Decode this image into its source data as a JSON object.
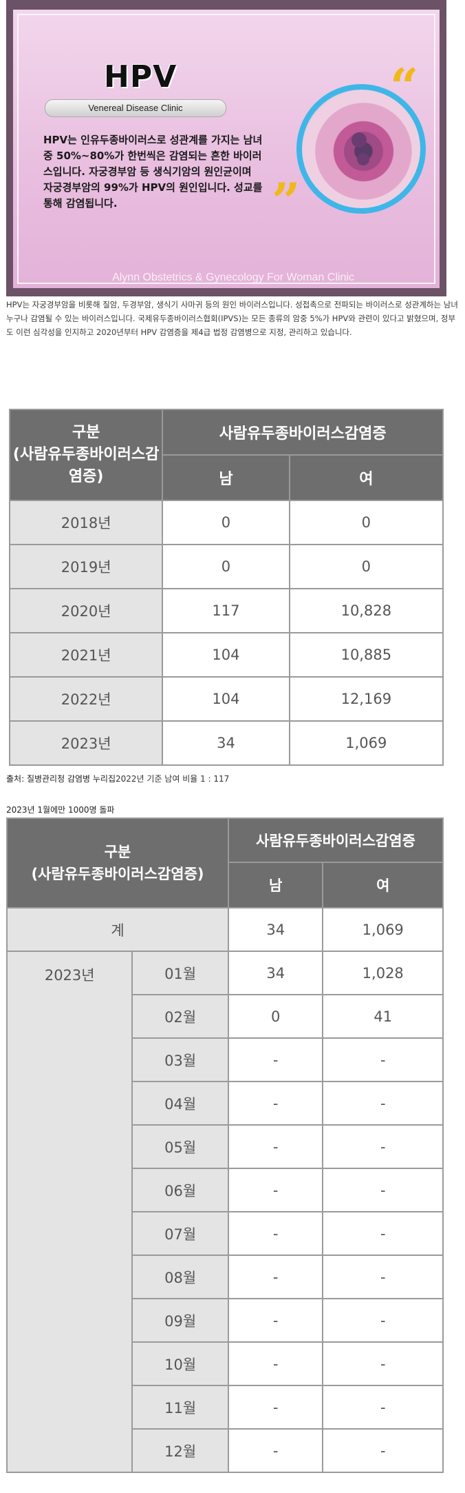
{
  "banner": {
    "title": "HPV",
    "subtitle": "Venereal Disease Clinic",
    "text": "HPV는 인유두종바이러스로 성관계를 가지는 남녀중 50%~80%가 한번씩은 감염되는 흔한 바이러스입니다. 자궁경부암 등 생식기암의 원인균이며 자궁경부암의 99%가 HPV의 원인입니다. 성교를 통해 감염됩니다.",
    "quote_open": "“",
    "quote_close": "”",
    "footer": "Alynn Obstetrics & Gynecology For Woman Clinic",
    "accent_color": "#3fb6e8",
    "quote_color": "#f0b81a"
  },
  "intro": "HPV는 자궁경부암을 비롯해 질암, 두경부암, 생식기 사마귀 등의 원인 바이러스입니다. 성접촉으로 전파되는 바이러스로 성관계하는 남녀 누구나 감염될 수 있는 바이러스입니다. 국제유두종바이러스협회(IPVS)는 모든 종류의 암중 5%가 HPV와 관련이 있다고 밝혔으며, 정부도 이런 심각성을 인지하고 2020년부터 HPV 감염증을 제4급 법정 감염병으로 지정, 관리하고 있습니다.",
  "table1": {
    "header_label": "구분\n(사람유두종바이러스감염증)",
    "header_group": "사람유두종바이러스감염증",
    "header_male": "남",
    "header_female": "여",
    "rows": [
      {
        "year": "2018년",
        "male": "0",
        "female": "0"
      },
      {
        "year": "2019년",
        "male": "0",
        "female": "0"
      },
      {
        "year": "2020년",
        "male": "117",
        "female": "10,828"
      },
      {
        "year": "2021년",
        "male": "104",
        "female": "10,885"
      },
      {
        "year": "2022년",
        "male": "104",
        "female": "12,169"
      },
      {
        "year": "2023년",
        "male": "34",
        "female": "1,069"
      }
    ]
  },
  "source": {
    "label": "출처: 질병관리청 감염병 누리집",
    "note": "2022년 기준 남여 비율 1 : 117"
  },
  "table2_title": "2023년 1월에만 1000명 돌파",
  "table2": {
    "header_label": "구분\n(사람유두종바이러스감염증)",
    "header_group": "사람유두종바이러스감염증",
    "header_male": "남",
    "header_female": "여",
    "total_label": "계",
    "total_male": "34",
    "total_female": "1,069",
    "year": "2023년",
    "months": [
      {
        "month": "01월",
        "male": "34",
        "female": "1,028"
      },
      {
        "month": "02월",
        "male": "0",
        "female": "41"
      },
      {
        "month": "03월",
        "male": "-",
        "female": "-"
      },
      {
        "month": "04월",
        "male": "-",
        "female": "-"
      },
      {
        "month": "05월",
        "male": "-",
        "female": "-"
      },
      {
        "month": "06월",
        "male": "-",
        "female": "-"
      },
      {
        "month": "07월",
        "male": "-",
        "female": "-"
      },
      {
        "month": "08월",
        "male": "-",
        "female": "-"
      },
      {
        "month": "09월",
        "male": "-",
        "female": "-"
      },
      {
        "month": "10월",
        "male": "-",
        "female": "-"
      },
      {
        "month": "11월",
        "male": "-",
        "female": "-"
      },
      {
        "month": "12월",
        "male": "-",
        "female": "-"
      }
    ]
  }
}
